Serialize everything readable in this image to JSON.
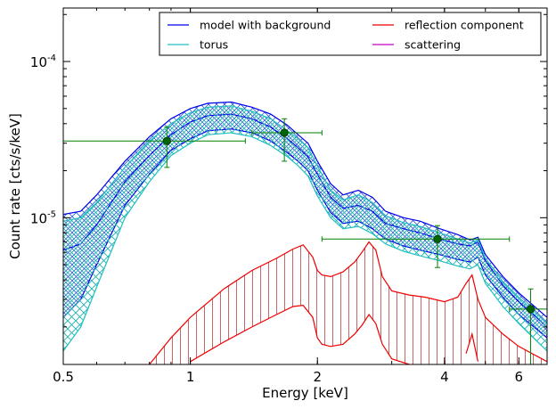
{
  "chart_data": {
    "type": "line",
    "xlabel": "Energy [keV]",
    "ylabel": "Count rate [cts/s/keV]",
    "xscale": "log",
    "yscale": "log",
    "xlim": [
      0.5,
      7.0
    ],
    "ylim": [
      1.15e-06,
      0.00022
    ],
    "x_ticks": [
      {
        "value": 0.5,
        "label": "0.5"
      },
      {
        "value": 1,
        "label": "1"
      },
      {
        "value": 2,
        "label": "2"
      },
      {
        "value": 4,
        "label": "4"
      },
      {
        "value": 6,
        "label": "6"
      }
    ],
    "y_ticks": [
      {
        "value": 1e-05,
        "base": "10",
        "exp": "-5"
      },
      {
        "value": 0.0001,
        "base": "10",
        "exp": "-4"
      }
    ],
    "legend": {
      "placement": "top-right",
      "columns": 2,
      "entries": [
        {
          "label": "model with background",
          "color": "#0000ee"
        },
        {
          "label": "reflection component",
          "color": "#ee0000"
        },
        {
          "label": "torus",
          "color": "#20c0c0"
        },
        {
          "label": "scattering",
          "color": "#c000c0"
        }
      ]
    },
    "series": [
      {
        "name": "model with background",
        "color": "#0000ee",
        "hatch": "cross",
        "x": [
          0.5,
          0.55,
          0.6,
          0.7,
          0.8,
          0.9,
          1.0,
          1.1,
          1.25,
          1.4,
          1.55,
          1.7,
          1.8,
          1.9,
          2.0,
          2.15,
          2.3,
          2.5,
          2.7,
          2.9,
          3.2,
          3.5,
          3.9,
          4.3,
          4.6,
          4.8,
          5.0,
          5.5,
          6.0,
          7.0
        ],
        "upper": [
          1.05e-05,
          1.1e-05,
          1.4e-05,
          2.3e-05,
          3.3e-05,
          4.3e-05,
          5e-05,
          5.4e-05,
          5.5e-05,
          5.1e-05,
          4.6e-05,
          3.9e-05,
          3.4e-05,
          3e-05,
          2.3e-05,
          1.65e-05,
          1.4e-05,
          1.5e-05,
          1.35e-05,
          1.1e-05,
          1e-05,
          9.5e-06,
          8.5e-06,
          7.8e-06,
          7.2e-06,
          7.5e-06,
          5.8e-06,
          4.2e-06,
          3.3e-06,
          2.3e-06
        ],
        "mid": [
          6.2e-06,
          6.8e-06,
          9e-06,
          1.7e-05,
          2.5e-05,
          3.4e-05,
          4.1e-05,
          4.5e-05,
          4.6e-05,
          4.3e-05,
          3.8e-05,
          3.2e-05,
          2.8e-05,
          2.45e-05,
          1.9e-05,
          1.35e-05,
          1.15e-05,
          1.2e-05,
          1.1e-05,
          9.2e-06,
          8.5e-06,
          8e-06,
          7.3e-06,
          6.8e-06,
          6.6e-06,
          7e-06,
          5.3e-06,
          3.7e-06,
          2.9e-06,
          2e-06
        ],
        "lower": [
          2.3e-06,
          3e-06,
          5e-06,
          1.2e-05,
          1.9e-05,
          2.7e-05,
          3.2e-05,
          3.6e-05,
          3.7e-05,
          3.5e-05,
          3.1e-05,
          2.6e-05,
          2.3e-05,
          2e-05,
          1.5e-05,
          1.08e-05,
          9.2e-06,
          9.5e-06,
          8.5e-06,
          7.3e-06,
          6.6e-06,
          6.2e-06,
          5.8e-06,
          5.4e-06,
          5.2e-06,
          5.6e-06,
          4.3e-06,
          3.1e-06,
          2.4e-06,
          1.7e-06
        ]
      },
      {
        "name": "torus",
        "color": "#20c0c0",
        "hatch": "cross",
        "x": [
          0.5,
          0.55,
          0.6,
          0.7,
          0.8,
          0.9,
          1.0,
          1.1,
          1.25,
          1.4,
          1.55,
          1.7,
          1.8,
          1.9,
          2.0,
          2.15,
          2.3,
          2.5,
          2.7,
          2.9,
          3.2,
          3.5,
          3.9,
          4.3,
          4.6,
          4.8,
          5.0,
          5.5,
          6.0,
          7.0
        ],
        "upper": [
          9.5e-06,
          1e-05,
          1.25e-05,
          2.1e-05,
          3.1e-05,
          4e-05,
          4.7e-05,
          5.1e-05,
          5.2e-05,
          4.8e-05,
          4.3e-05,
          3.6e-05,
          3.2e-05,
          2.8e-05,
          2.15e-05,
          1.5e-05,
          1.3e-05,
          1.4e-05,
          1.25e-05,
          1.03e-05,
          9.3e-06,
          8.8e-06,
          8e-06,
          7.3e-06,
          6.9e-06,
          7.2e-06,
          5.5e-06,
          3.9e-06,
          3.1e-06,
          2.1e-06
        ],
        "lower": [
          1.4e-06,
          2e-06,
          3.6e-06,
          1e-05,
          1.7e-05,
          2.5e-05,
          3e-05,
          3.4e-05,
          3.5e-05,
          3.3e-05,
          2.9e-05,
          2.45e-05,
          2.15e-05,
          1.85e-05,
          1.38e-05,
          1e-05,
          8.5e-06,
          8.8e-06,
          7.9e-06,
          6.8e-06,
          6.1e-06,
          5.7e-06,
          5.3e-06,
          4.9e-06,
          4.7e-06,
          5e-06,
          3.8e-06,
          2.7e-06,
          2.1e-06,
          1.4e-06
        ]
      },
      {
        "name": "reflection component",
        "color": "#ee0000",
        "hatch": "vertical",
        "x": [
          0.8,
          0.9,
          1.0,
          1.2,
          1.4,
          1.6,
          1.75,
          1.85,
          1.95,
          2.0,
          2.05,
          2.15,
          2.3,
          2.45,
          2.55,
          2.65,
          2.75,
          2.85,
          3.0,
          3.3,
          3.6,
          4.0,
          4.3,
          4.5,
          4.65,
          4.8,
          5.0,
          5.5,
          6.0,
          7.0
        ],
        "upper": [
          1.15e-06,
          1.7e-06,
          2.3e-06,
          3.5e-06,
          4.6e-06,
          5.5e-06,
          6.3e-06,
          6.7e-06,
          5.6e-06,
          4.6e-06,
          4.3e-06,
          4.2e-06,
          4.5e-06,
          5.2e-06,
          6e-06,
          7e-06,
          6.2e-06,
          4.2e-06,
          3.4e-06,
          3.2e-06,
          3.1e-06,
          2.9e-06,
          3.1e-06,
          3.8e-06,
          4.3e-06,
          3e-06,
          2.3e-06,
          1.8e-06,
          1.5e-06,
          1.2e-06
        ],
        "lower": [
          null,
          null,
          1.2e-06,
          1.6e-06,
          2e-06,
          2.4e-06,
          2.7e-06,
          2.75e-06,
          2.3e-06,
          1.7e-06,
          1.55e-06,
          1.5e-06,
          1.55e-06,
          1.8e-06,
          2.05e-06,
          2.4e-06,
          2.1e-06,
          1.55e-06,
          1.25e-06,
          1.15e-06,
          null,
          null,
          null,
          1.35e-06,
          1.8e-06,
          1.2e-06,
          null,
          null,
          null,
          null
        ]
      }
    ],
    "data_points": [
      {
        "x": 0.88,
        "y": 3.1e-05,
        "xerr": [
          0.5,
          1.35
        ],
        "yerr": [
          2.1e-05,
          3.8e-05
        ]
      },
      {
        "x": 1.67,
        "y": 3.5e-05,
        "xerr": [
          1.4,
          2.05
        ],
        "yerr": [
          2.3e-05,
          4.3e-05
        ]
      },
      {
        "x": 3.85,
        "y": 7.3e-06,
        "xerr": [
          2.05,
          5.7
        ],
        "yerr": [
          4.8e-06,
          8.9e-06
        ]
      },
      {
        "x": 6.4,
        "y": 2.6e-06,
        "xerr": [
          5.7,
          7.0
        ],
        "yerr": [
          1.15e-06,
          3.5e-06
        ]
      }
    ],
    "errorbar_color": "#008000",
    "marker_color": "#006400",
    "grid": false
  }
}
